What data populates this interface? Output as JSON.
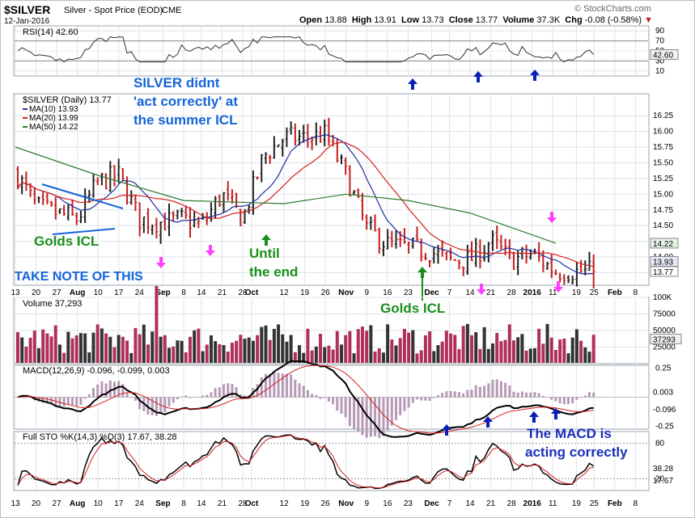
{
  "header": {
    "symbol": "$SILVER",
    "name": "Silver - Spot Price (EOD)",
    "exchange": "CME",
    "date": "12-Jan-2016",
    "brand": "© StockCharts.com",
    "open_label": "Open",
    "open": "13.88",
    "high_label": "High",
    "high": "13.91",
    "low_label": "Low",
    "low": "13.73",
    "close_label": "Close",
    "close": "13.77",
    "volume_label": "Volume",
    "volume": "37.3K",
    "chg_label": "Chg",
    "chg": "-0.08 (-0.58%)"
  },
  "rsi": {
    "title": "RSI(14) 42.60",
    "current": "42.60",
    "ticks": [
      "90",
      "70",
      "50",
      "30",
      "10"
    ]
  },
  "price_panel": {
    "legend": {
      "symbol_line": "$SILVER (Daily) 13.77",
      "ma10": "MA(10) 13.93",
      "ma20": "MA(20) 13.99",
      "ma50": "MA(50) 14.22"
    },
    "ticks": [
      "16.25",
      "16.00",
      "15.75",
      "15.50",
      "15.25",
      "15.00",
      "14.75",
      "14.50",
      "14.25",
      "14.00",
      "13.75"
    ],
    "flags": {
      "ma50": "14.22",
      "ma10": "13.93",
      "ma20": "13.99",
      "close": "13.77"
    }
  },
  "volume": {
    "title": "Volume 37,293",
    "current": "37293",
    "ticks": [
      "100K",
      "75000",
      "50000",
      "25000"
    ]
  },
  "macd": {
    "title": "MACD(12,26,9) -0.096, -0.099, 0.003",
    "ticks": [
      "0.25",
      "-0.25"
    ],
    "flags": {
      "hist": "0.003",
      "macd": "-0.096"
    }
  },
  "sto": {
    "title": "Full STO %K(14,3) %D(3) 17.67, 38.28",
    "ticks": [
      "80",
      "20"
    ],
    "flags": {
      "d": "38.28",
      "k": "17.67"
    }
  },
  "x_axis": {
    "labels": [
      "13",
      "20",
      "27",
      "Aug",
      "10",
      "17",
      "24",
      "Sep",
      "8",
      "14",
      "21",
      "28",
      "Oct",
      "12",
      "19",
      "26",
      "Nov",
      "9",
      "16",
      "23",
      "Dec",
      "7",
      "14",
      "21",
      "28",
      "2016",
      "11",
      "19",
      "25",
      "Feb",
      "8"
    ],
    "bold": [
      "Aug",
      "Sep",
      "Oct",
      "Nov",
      "Dec",
      "2016",
      "Feb"
    ]
  },
  "annotations": {
    "silver_line1": "SILVER didnt",
    "silver_line2": "'act correctly' at",
    "silver_line3": "the summer ICL",
    "golds_icl_left": "Golds ICL",
    "take_note": "TAKE NOTE OF THIS",
    "until_1": "Until",
    "until_2": "the end",
    "golds_icl_bottom": "Golds ICL",
    "macd_note_1": "The MACD is",
    "macd_note_2": "acting correctly"
  },
  "colors": {
    "up_bar": "#222222",
    "down_bar": "#c41e1e",
    "ma10": "#1f2f9e",
    "ma20": "#d42020",
    "ma50": "#2b7a2b",
    "annotation_blue": "#1565d8",
    "annotation_green": "#1a8f1a",
    "arrow_blue": "#0a1fb5",
    "arrow_magenta": "#ff40ff",
    "frame": "#9aa3ad"
  },
  "chart_data": {
    "type": "ohlc",
    "title": "$SILVER Silver - Spot Price (EOD) CME",
    "x_domain": [
      "2015-07-13",
      "2016-02-12"
    ],
    "price_ylim": [
      13.55,
      16.6
    ],
    "price_close": [
      [
        "2015-07-13",
        15.35
      ],
      [
        "2015-07-20",
        14.8
      ],
      [
        "2015-07-27",
        14.7
      ],
      [
        "2015-08-03",
        14.6
      ],
      [
        "2015-08-10",
        15.2
      ],
      [
        "2015-08-17",
        15.3
      ],
      [
        "2015-08-24",
        14.6
      ],
      [
        "2015-08-31",
        14.55
      ],
      [
        "2015-09-08",
        14.6
      ],
      [
        "2015-09-14",
        14.5
      ],
      [
        "2015-09-21",
        15.0
      ],
      [
        "2015-09-28",
        14.6
      ],
      [
        "2015-10-05",
        15.6
      ],
      [
        "2015-10-12",
        15.9
      ],
      [
        "2015-10-19",
        15.9
      ],
      [
        "2015-10-26",
        15.95
      ],
      [
        "2015-11-02",
        15.3
      ],
      [
        "2015-11-09",
        14.45
      ],
      [
        "2015-11-16",
        14.2
      ],
      [
        "2015-11-23",
        14.15
      ],
      [
        "2015-11-30",
        14.1
      ],
      [
        "2015-12-07",
        13.95
      ],
      [
        "2015-12-14",
        13.95
      ],
      [
        "2015-12-21",
        14.25
      ],
      [
        "2015-12-28",
        13.95
      ],
      [
        "2016-01-04",
        14.05
      ],
      [
        "2016-01-12",
        13.77
      ]
    ],
    "ma50": [
      [
        "2015-07-13",
        15.75
      ],
      [
        "2015-08-10",
        15.3
      ],
      [
        "2015-09-08",
        14.9
      ],
      [
        "2015-10-12",
        14.85
      ],
      [
        "2015-11-02",
        15.0
      ],
      [
        "2015-11-23",
        14.9
      ],
      [
        "2015-12-14",
        14.7
      ],
      [
        "2016-01-12",
        14.22
      ]
    ],
    "rsi_ylim": [
      0,
      100
    ],
    "rsi_current": 42.6,
    "volume_ylim": [
      0,
      100000
    ],
    "volume_current": 37293,
    "macd": {
      "macd": -0.096,
      "signal": -0.099,
      "histogram": 0.003
    },
    "stochastic": {
      "k": 17.67,
      "d": 38.28
    }
  }
}
